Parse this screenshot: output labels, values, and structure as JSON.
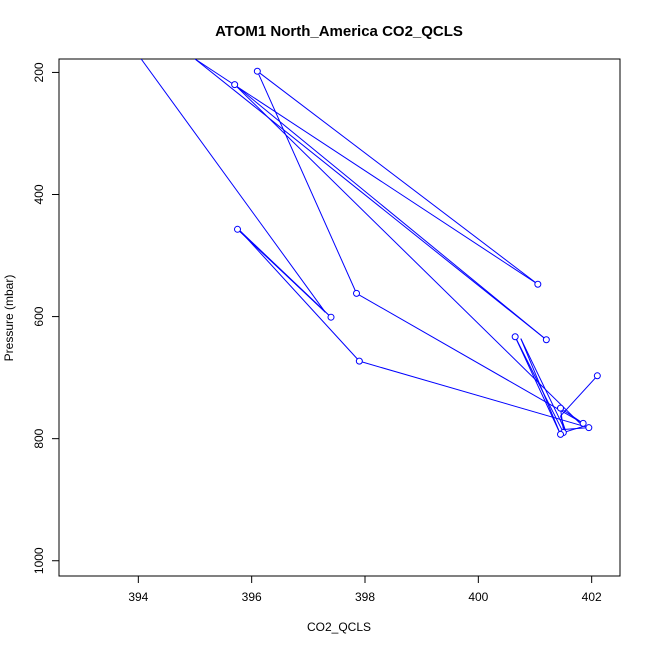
{
  "chart_data": {
    "type": "line",
    "title": "ATOM1 North_America CO2_QCLS",
    "xlabel": "CO2_QCLS",
    "ylabel": "Pressure (mbar)",
    "xlim": [
      392.6,
      402.5
    ],
    "ylim": [
      1025,
      178
    ],
    "y_reversed": true,
    "grid": false,
    "x_ticks": [
      394,
      396,
      398,
      400,
      402
    ],
    "x_tick_labels": [
      "394",
      "396",
      "398",
      "400",
      "402"
    ],
    "y_ticks": [
      200,
      400,
      600,
      800,
      1000
    ],
    "y_tick_labels": [
      "200",
      "400",
      "600",
      "800",
      "1000"
    ],
    "series": [
      {
        "color": "#0000ff",
        "marker": "open-circle",
        "points": [
          {
            "x": 394.05,
            "y": 178,
            "marker": false
          },
          {
            "x": 397.3,
            "y": 593,
            "marker": false
          },
          {
            "x": 395.75,
            "y": 457,
            "marker": true
          },
          {
            "x": 397.4,
            "y": 601,
            "marker": true
          },
          {
            "x": 395.8,
            "y": 460,
            "marker": false
          },
          {
            "x": 397.9,
            "y": 673,
            "marker": true
          },
          {
            "x": 401.95,
            "y": 782,
            "marker": true
          },
          {
            "x": 401.5,
            "y": 785,
            "marker": false
          },
          {
            "x": 401.45,
            "y": 750,
            "marker": true
          },
          {
            "x": 401.85,
            "y": 775,
            "marker": true
          },
          {
            "x": 397.85,
            "y": 562,
            "marker": true
          },
          {
            "x": 396.1,
            "y": 198,
            "marker": true
          },
          {
            "x": 401.05,
            "y": 547,
            "marker": true
          },
          {
            "x": 395.0,
            "y": 178,
            "marker": false
          },
          {
            "x": 401.2,
            "y": 638,
            "marker": true
          },
          {
            "x": 395.7,
            "y": 220,
            "marker": true
          },
          {
            "x": 401.85,
            "y": 780,
            "marker": false
          },
          {
            "x": 401.5,
            "y": 790,
            "marker": true
          },
          {
            "x": 400.65,
            "y": 633,
            "marker": true
          },
          {
            "x": 401.45,
            "y": 793,
            "marker": true
          },
          {
            "x": 400.75,
            "y": 636,
            "marker": false
          },
          {
            "x": 401.55,
            "y": 790,
            "marker": false
          },
          {
            "x": 401.45,
            "y": 763,
            "marker": false
          },
          {
            "x": 402.1,
            "y": 697,
            "marker": true
          }
        ]
      }
    ]
  }
}
